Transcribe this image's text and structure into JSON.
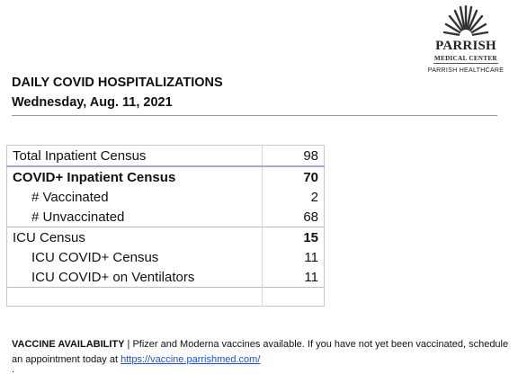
{
  "logo": {
    "name": "PARRISH",
    "subtitle": "MEDICAL CENTER",
    "healthcare": "PARRISH HEALTHCARE"
  },
  "header": {
    "title": "DAILY COVID HOSPITALIZATIONS",
    "date": "Wednesday, Aug. 11, 2021"
  },
  "census": {
    "total_label": "Total Inpatient Census",
    "total_value": "98",
    "covid_label": "COVID+ Inpatient Census",
    "covid_value": "70",
    "vaccinated_label": "# Vaccinated",
    "vaccinated_value": "2",
    "unvaccinated_label": "# Unvaccinated",
    "unvaccinated_value": "68",
    "icu_label": "ICU Census",
    "icu_value": "15",
    "icu_covid_label": "ICU COVID+ Census",
    "icu_covid_value": "11",
    "vent_label": "ICU COVID+ on Ventilators",
    "vent_value": "11"
  },
  "footer": {
    "heading": "VACCINE AVAILABILITY",
    "separator": "|",
    "text": "Pfizer and Moderna vaccines available. If you have not yet been vaccinated, schedule an appointment today at",
    "link": "https://vaccine.parrishmed.com/",
    "trailing": "."
  }
}
